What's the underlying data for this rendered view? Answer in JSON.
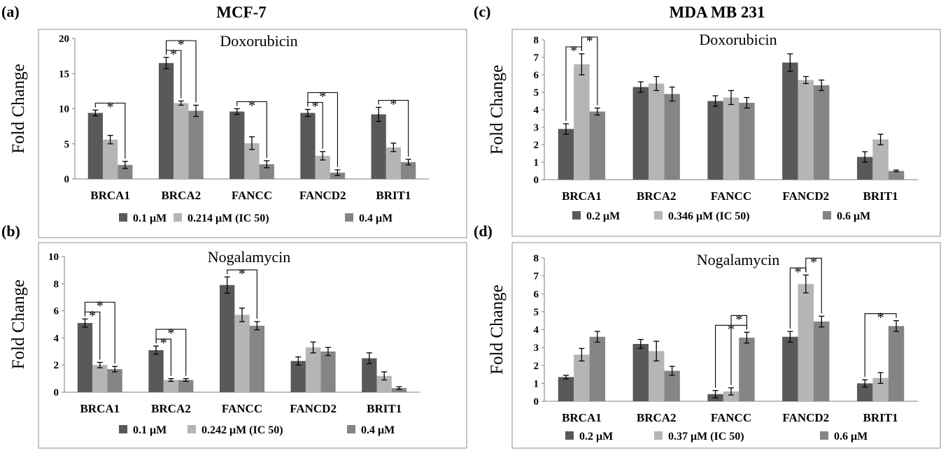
{
  "figure": {
    "column_titles": [
      "MCF-7",
      "MDA MB 231"
    ],
    "y_axis_label": "Fold Change"
  },
  "colors": {
    "series": [
      "#595959",
      "#b5b5b5",
      "#858585"
    ]
  },
  "chart_data": [
    {
      "panel": "(a)",
      "type": "bar",
      "title": "Doxorubicin",
      "ylabel": "Fold Change",
      "ylim": [
        0,
        20
      ],
      "yticks": [
        0,
        5,
        10,
        15,
        20
      ],
      "categories": [
        "BRCA1",
        "BRCA2",
        "FANCC",
        "FANCD2",
        "BRIT1"
      ],
      "series": [
        {
          "name": "0.1 μM",
          "values": [
            9.4,
            16.5,
            9.6,
            9.4,
            9.2
          ],
          "errors": [
            0.4,
            0.8,
            0.4,
            0.5,
            1.0
          ]
        },
        {
          "name": "0.214 μM (IC 50)",
          "values": [
            5.6,
            10.8,
            5.1,
            3.3,
            4.5
          ],
          "errors": [
            0.6,
            0.3,
            0.9,
            0.6,
            0.6
          ]
        },
        {
          "name": "0.4 μM",
          "values": [
            2.0,
            9.7,
            2.1,
            0.9,
            2.4
          ],
          "errors": [
            0.5,
            0.8,
            0.5,
            0.4,
            0.4
          ]
        }
      ],
      "annotations": [
        {
          "from": 0,
          "to": 2,
          "category": 0,
          "label": "*"
        },
        {
          "from": 0,
          "to": 1,
          "category": 1,
          "label": "*"
        },
        {
          "from": 0,
          "to": 2,
          "category": 1,
          "label": "*"
        },
        {
          "from": 0,
          "to": 2,
          "category": 2,
          "label": "*"
        },
        {
          "from": 0,
          "to": 1,
          "category": 3,
          "label": "*"
        },
        {
          "from": 0,
          "to": 2,
          "category": 3,
          "label": "*"
        },
        {
          "from": 0,
          "to": 2,
          "category": 4,
          "label": "*"
        }
      ],
      "legend": "bottom",
      "grid": false
    },
    {
      "panel": "(b)",
      "type": "bar",
      "title": "Nogalamycin",
      "ylabel": "Fold Change",
      "ylim": [
        0,
        10
      ],
      "yticks": [
        0,
        2,
        4,
        6,
        8,
        10
      ],
      "categories": [
        "BRCA1",
        "BRCA2",
        "FANCC",
        "FANCD2",
        "BRIT1"
      ],
      "series": [
        {
          "name": "0.1 μM",
          "values": [
            5.1,
            3.1,
            7.9,
            2.3,
            2.5
          ],
          "errors": [
            0.3,
            0.3,
            0.6,
            0.3,
            0.4
          ]
        },
        {
          "name": "0.242 μM (IC 50)",
          "values": [
            2.0,
            0.9,
            5.7,
            3.3,
            1.2
          ],
          "errors": [
            0.2,
            0.1,
            0.5,
            0.4,
            0.3
          ]
        },
        {
          "name": "0.4 μM",
          "values": [
            1.7,
            0.9,
            4.9,
            3.0,
            0.3
          ],
          "errors": [
            0.2,
            0.1,
            0.3,
            0.3,
            0.1
          ]
        }
      ],
      "annotations": [
        {
          "from": 0,
          "to": 1,
          "category": 0,
          "label": "*"
        },
        {
          "from": 0,
          "to": 2,
          "category": 0,
          "label": "*"
        },
        {
          "from": 0,
          "to": 1,
          "category": 1,
          "label": "*"
        },
        {
          "from": 0,
          "to": 2,
          "category": 1,
          "label": "*"
        },
        {
          "from": 0,
          "to": 2,
          "category": 2,
          "label": "*"
        }
      ],
      "legend": "bottom",
      "grid": false
    },
    {
      "panel": "(c)",
      "type": "bar",
      "title": "Doxorubicin",
      "ylabel": "Fold Change",
      "ylim": [
        0,
        8
      ],
      "yticks": [
        0,
        1,
        2,
        3,
        4,
        5,
        6,
        7,
        8
      ],
      "categories": [
        "BRCA1",
        "BRCA2",
        "FANCC",
        "FANCD2",
        "BRIT1"
      ],
      "series": [
        {
          "name": "0.2 μM",
          "values": [
            2.9,
            5.3,
            4.5,
            6.7,
            1.3
          ],
          "errors": [
            0.3,
            0.3,
            0.3,
            0.5,
            0.3
          ]
        },
        {
          "name": "0.346 μM (IC 50)",
          "values": [
            6.6,
            5.5,
            4.7,
            5.7,
            2.3
          ],
          "errors": [
            0.6,
            0.4,
            0.4,
            0.2,
            0.3
          ]
        },
        {
          "name": "0.6 μM",
          "values": [
            3.9,
            4.9,
            4.4,
            5.4,
            0.5
          ],
          "errors": [
            0.2,
            0.4,
            0.3,
            0.3,
            0.05
          ]
        }
      ],
      "annotations": [
        {
          "from": 0,
          "to": 1,
          "category": 0,
          "label": "*"
        },
        {
          "from": 1,
          "to": 2,
          "category": 0,
          "label": "*"
        }
      ],
      "legend": "bottom",
      "grid": false
    },
    {
      "panel": "(d)",
      "type": "bar",
      "title": "Nogalamycin",
      "ylabel": "Fold Change",
      "ylim": [
        0,
        8
      ],
      "yticks": [
        0,
        1,
        2,
        3,
        4,
        5,
        6,
        7,
        8
      ],
      "categories": [
        "BRCA1",
        "BRCA2",
        "FANCC",
        "FANCD2",
        "BRIT1"
      ],
      "series": [
        {
          "name": "0.2 μM",
          "values": [
            1.35,
            3.2,
            0.4,
            3.6,
            1.0
          ],
          "errors": [
            0.1,
            0.25,
            0.2,
            0.3,
            0.2
          ]
        },
        {
          "name": "0.37 μM (IC 50)",
          "values": [
            2.6,
            2.8,
            0.55,
            6.55,
            1.3
          ],
          "errors": [
            0.35,
            0.55,
            0.2,
            0.5,
            0.3
          ]
        },
        {
          "name": "0.6 μM",
          "values": [
            3.6,
            1.7,
            3.55,
            4.45,
            4.2
          ],
          "errors": [
            0.3,
            0.25,
            0.3,
            0.3,
            0.3
          ]
        }
      ],
      "annotations": [
        {
          "from": 0,
          "to": 2,
          "category": 2,
          "label": "*"
        },
        {
          "from": 1,
          "to": 2,
          "category": 2,
          "label": "*"
        },
        {
          "from": 0,
          "to": 1,
          "category": 3,
          "label": "*"
        },
        {
          "from": 1,
          "to": 2,
          "category": 3,
          "label": "*"
        },
        {
          "from": 0,
          "to": 2,
          "category": 4,
          "label": "*"
        }
      ],
      "legend": "bottom",
      "grid": false
    }
  ]
}
